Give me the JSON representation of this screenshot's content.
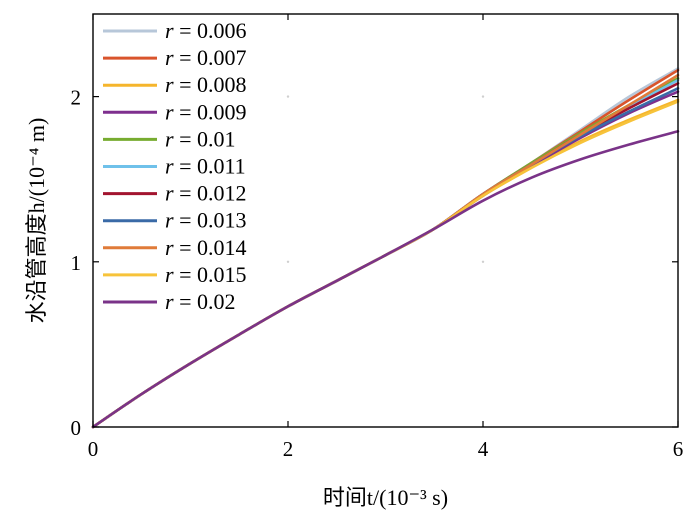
{
  "chart_data": {
    "type": "line",
    "xlabel": "时间t/(10⁻³ s)",
    "ylabel": "水沿管高度h/(10⁻⁴ m)",
    "xlim": [
      0,
      6
    ],
    "ylim": [
      0,
      2.5
    ],
    "xticks": [
      0,
      2,
      4,
      6
    ],
    "yticks": [
      0,
      1,
      2
    ],
    "xtick_labels": [
      "0",
      "2",
      "4",
      "6"
    ],
    "ytick_labels": [
      "0",
      "1",
      "2"
    ],
    "legend_position": "top-left",
    "grid": false,
    "x": [
      0,
      0.5,
      1,
      1.5,
      2,
      2.5,
      3,
      3.5,
      4,
      4.5,
      5,
      5.5,
      6
    ],
    "series": [
      {
        "name": "r = 0.006",
        "color": "#b7c7d9",
        "values": [
          0,
          0.2,
          0.385,
          0.56,
          0.73,
          0.885,
          1.04,
          1.2,
          1.41,
          1.6,
          1.8,
          2.0,
          2.17
        ]
      },
      {
        "name": "r = 0.007",
        "color": "#d9542c",
        "values": [
          0,
          0.2,
          0.385,
          0.56,
          0.73,
          0.885,
          1.04,
          1.2,
          1.41,
          1.6,
          1.79,
          1.98,
          2.16
        ]
      },
      {
        "name": "r = 0.008",
        "color": "#f5b52c",
        "values": [
          0,
          0.2,
          0.385,
          0.56,
          0.73,
          0.885,
          1.04,
          1.2,
          1.4,
          1.57,
          1.73,
          1.86,
          1.98
        ]
      },
      {
        "name": "r = 0.009",
        "color": "#7e2f8e",
        "values": [
          0,
          0.2,
          0.385,
          0.56,
          0.73,
          0.885,
          1.04,
          1.2,
          1.4,
          1.58,
          1.75,
          1.9,
          2.03
        ]
      },
      {
        "name": "r = 0.01",
        "color": "#77ac30",
        "values": [
          0,
          0.2,
          0.385,
          0.56,
          0.73,
          0.885,
          1.04,
          1.2,
          1.41,
          1.6,
          1.78,
          1.95,
          2.11
        ]
      },
      {
        "name": "r = 0.011",
        "color": "#6fc1ea",
        "values": [
          0,
          0.2,
          0.385,
          0.56,
          0.73,
          0.885,
          1.04,
          1.2,
          1.41,
          1.59,
          1.77,
          1.94,
          2.1
        ]
      },
      {
        "name": "r = 0.012",
        "color": "#a2142f",
        "values": [
          0,
          0.2,
          0.385,
          0.56,
          0.73,
          0.885,
          1.04,
          1.2,
          1.41,
          1.59,
          1.77,
          1.93,
          2.08
        ]
      },
      {
        "name": "r = 0.013",
        "color": "#3a6aa7",
        "values": [
          0,
          0.2,
          0.385,
          0.56,
          0.73,
          0.885,
          1.04,
          1.2,
          1.41,
          1.59,
          1.76,
          1.91,
          2.05
        ]
      },
      {
        "name": "r = 0.014",
        "color": "#e07b39",
        "values": [
          0,
          0.2,
          0.385,
          0.56,
          0.73,
          0.885,
          1.04,
          1.2,
          1.41,
          1.59,
          1.77,
          1.95,
          2.13
        ]
      },
      {
        "name": "r = 0.015",
        "color": "#f7c33a",
        "values": [
          0,
          0.2,
          0.385,
          0.56,
          0.73,
          0.885,
          1.04,
          1.2,
          1.4,
          1.57,
          1.72,
          1.85,
          1.97
        ]
      },
      {
        "name": "r = 0.02",
        "color": "#7a3388",
        "values": [
          0,
          0.2,
          0.385,
          0.56,
          0.73,
          0.885,
          1.04,
          1.2,
          1.37,
          1.51,
          1.62,
          1.71,
          1.79
        ]
      }
    ]
  }
}
